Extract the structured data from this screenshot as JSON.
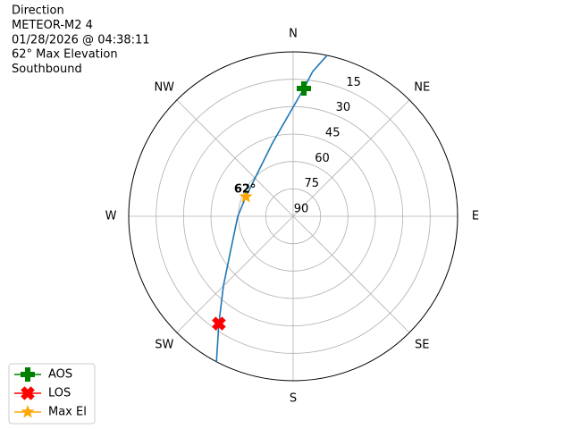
{
  "chart_data": {
    "type": "polar",
    "title": [
      "Direction",
      "METEOR-M2 4",
      "01/28/2026 @ 04:38:11",
      "62° Max Elevation",
      "Southbound"
    ],
    "xticks": [
      {
        "value": 0,
        "label": "N"
      },
      {
        "value": 45,
        "label": "NE"
      },
      {
        "value": 90,
        "label": "E"
      },
      {
        "value": 135,
        "label": "SE"
      },
      {
        "value": 180,
        "label": "S"
      },
      {
        "value": 225,
        "label": "SW"
      },
      {
        "value": 270,
        "label": "W"
      },
      {
        "value": 315,
        "label": "NW"
      }
    ],
    "ylim": [
      90,
      0
    ],
    "yticks": [
      15,
      30,
      45,
      60,
      75,
      90
    ],
    "grid": true,
    "track": {
      "color": "#1f77b4",
      "azimuth": [
        11.9,
        7.7,
        4.8,
        344.3,
        323.8,
        292.5,
        270,
        241.5,
        225,
        214.7,
        207.8
      ],
      "elevation": [
        0,
        10,
        19.8,
        48.3,
        58.5,
        62,
        59.7,
        51.1,
        36,
        18.6,
        0
      ]
    },
    "markers": [
      {
        "name": "AOS",
        "color": "#008000",
        "shape": "plus",
        "azimuth": 4.8,
        "elevation": 19.8
      },
      {
        "name": "LOS",
        "color": "#ff0000",
        "shape": "x",
        "azimuth": 214.7,
        "elevation": 18.6
      },
      {
        "name": "Max El",
        "color": "#ffa500",
        "shape": "star",
        "azimuth": 292.5,
        "elevation": 62
      }
    ],
    "annotation": "62°",
    "legend": "lower left"
  }
}
